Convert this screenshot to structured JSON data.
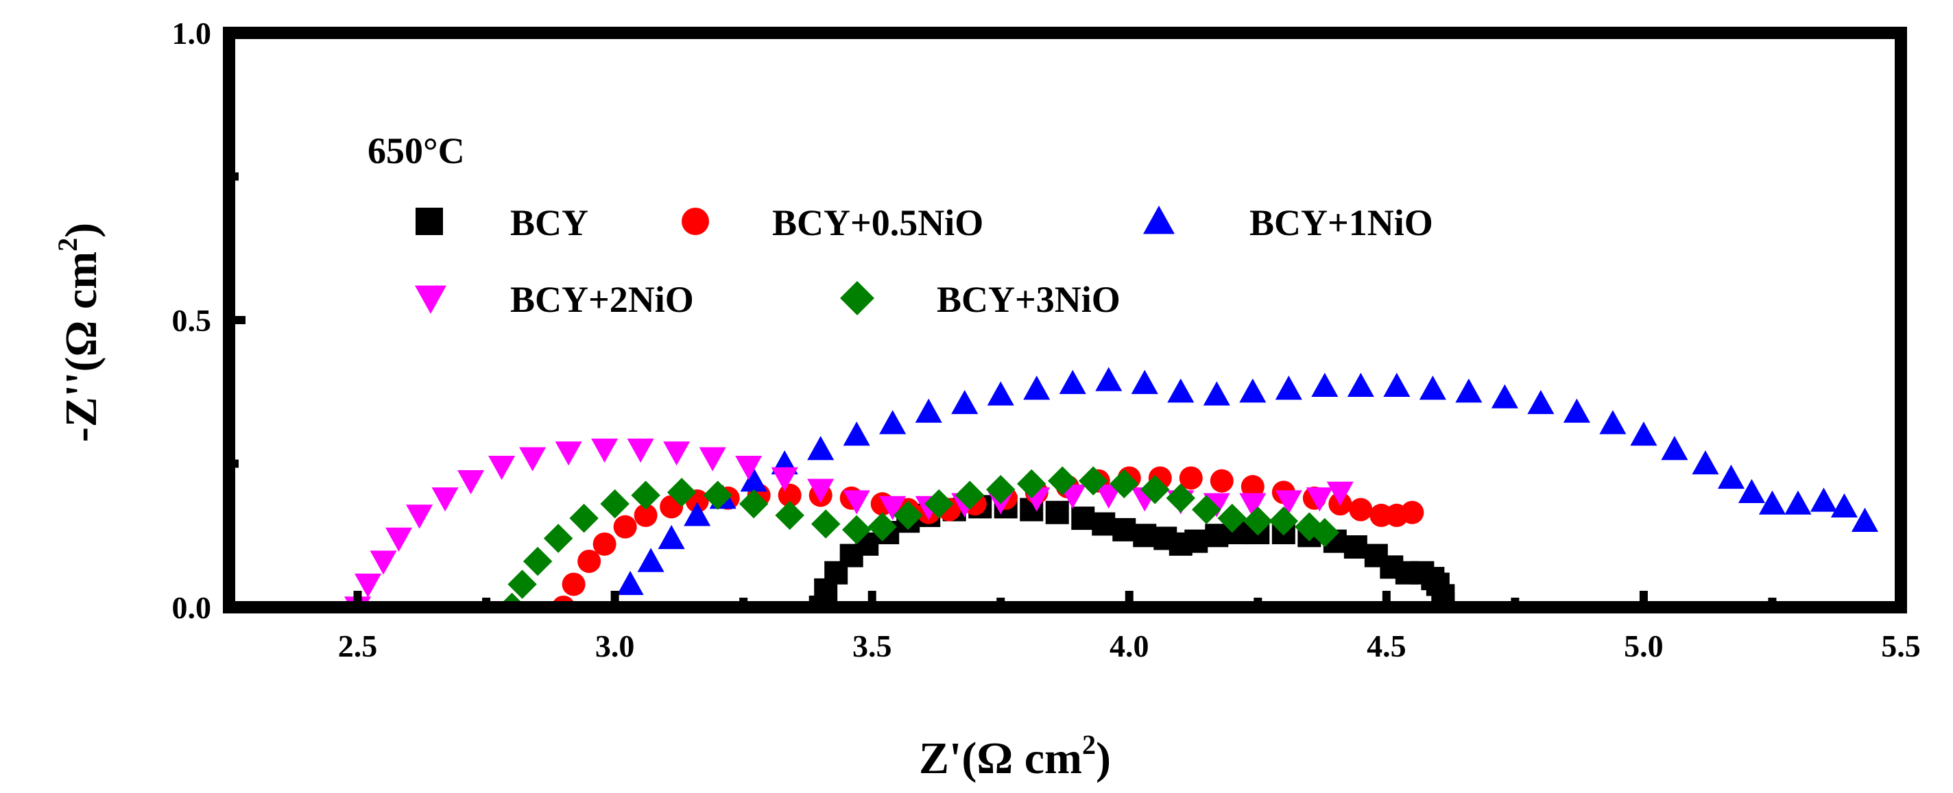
{
  "chart_data": {
    "type": "scatter",
    "title": "",
    "annotation": "650°C",
    "xlabel": "Z'(Ω cm",
    "xlabel_sup": "2",
    "xlabel_end": ")",
    "ylabel": "-Z''(Ω cm",
    "ylabel_sup": "2",
    "ylabel_end": ")",
    "xlim": [
      2.25,
      5.5
    ],
    "ylim": [
      0.0,
      1.0
    ],
    "xticks": [
      2.5,
      3.0,
      3.5,
      4.0,
      4.5,
      5.0,
      5.5
    ],
    "xtick_labels": [
      "2.5",
      "3.0",
      "3.5",
      "4.0",
      "4.5",
      "5.0",
      "5.5"
    ],
    "yticks": [
      0.0,
      0.5,
      1.0
    ],
    "ytick_labels": [
      "0.0",
      "0.5",
      "1.0"
    ],
    "legend_placement": "upper-left",
    "series": [
      {
        "name": "BCY",
        "color": "#000000",
        "marker": "square",
        "points": [
          [
            3.4,
            0.0
          ],
          [
            3.41,
            0.03
          ],
          [
            3.43,
            0.06
          ],
          [
            3.46,
            0.09
          ],
          [
            3.49,
            0.11
          ],
          [
            3.53,
            0.13
          ],
          [
            3.57,
            0.15
          ],
          [
            3.61,
            0.16
          ],
          [
            3.66,
            0.17
          ],
          [
            3.71,
            0.175
          ],
          [
            3.76,
            0.175
          ],
          [
            3.81,
            0.17
          ],
          [
            3.86,
            0.165
          ],
          [
            3.91,
            0.155
          ],
          [
            3.95,
            0.145
          ],
          [
            3.99,
            0.135
          ],
          [
            4.03,
            0.125
          ],
          [
            4.07,
            0.12
          ],
          [
            4.1,
            0.11
          ],
          [
            4.13,
            0.115
          ],
          [
            4.17,
            0.125
          ],
          [
            4.21,
            0.13
          ],
          [
            4.25,
            0.13
          ],
          [
            4.3,
            0.13
          ],
          [
            4.35,
            0.125
          ],
          [
            4.4,
            0.115
          ],
          [
            4.44,
            0.105
          ],
          [
            4.48,
            0.09
          ],
          [
            4.51,
            0.07
          ],
          [
            4.54,
            0.06
          ],
          [
            4.57,
            0.06
          ],
          [
            4.59,
            0.05
          ],
          [
            4.6,
            0.04
          ],
          [
            4.61,
            0.02
          ],
          [
            4.61,
            0.005
          ]
        ]
      },
      {
        "name": "BCY+0.5NiO",
        "color": "#ff0000",
        "marker": "circle",
        "points": [
          [
            2.9,
            0.0
          ],
          [
            2.92,
            0.04
          ],
          [
            2.95,
            0.08
          ],
          [
            2.98,
            0.11
          ],
          [
            3.02,
            0.14
          ],
          [
            3.06,
            0.16
          ],
          [
            3.11,
            0.175
          ],
          [
            3.16,
            0.185
          ],
          [
            3.22,
            0.19
          ],
          [
            3.28,
            0.195
          ],
          [
            3.34,
            0.195
          ],
          [
            3.4,
            0.195
          ],
          [
            3.46,
            0.19
          ],
          [
            3.52,
            0.18
          ],
          [
            3.57,
            0.17
          ],
          [
            3.61,
            0.165
          ],
          [
            3.65,
            0.17
          ],
          [
            3.7,
            0.18
          ],
          [
            3.76,
            0.19
          ],
          [
            3.82,
            0.2
          ],
          [
            3.88,
            0.21
          ],
          [
            3.94,
            0.22
          ],
          [
            4.0,
            0.225
          ],
          [
            4.06,
            0.225
          ],
          [
            4.12,
            0.225
          ],
          [
            4.18,
            0.22
          ],
          [
            4.24,
            0.21
          ],
          [
            4.3,
            0.2
          ],
          [
            4.36,
            0.19
          ],
          [
            4.41,
            0.18
          ],
          [
            4.45,
            0.17
          ],
          [
            4.49,
            0.16
          ],
          [
            4.52,
            0.16
          ],
          [
            4.55,
            0.165
          ]
        ]
      },
      {
        "name": "BCY+1NiO",
        "color": "#0000ff",
        "marker": "triangle-up",
        "points": [
          [
            3.0,
            0.0
          ],
          [
            3.03,
            0.04
          ],
          [
            3.07,
            0.08
          ],
          [
            3.11,
            0.12
          ],
          [
            3.16,
            0.16
          ],
          [
            3.21,
            0.19
          ],
          [
            3.27,
            0.22
          ],
          [
            3.33,
            0.25
          ],
          [
            3.4,
            0.275
          ],
          [
            3.47,
            0.3
          ],
          [
            3.54,
            0.32
          ],
          [
            3.61,
            0.34
          ],
          [
            3.68,
            0.355
          ],
          [
            3.75,
            0.37
          ],
          [
            3.82,
            0.38
          ],
          [
            3.89,
            0.39
          ],
          [
            3.96,
            0.395
          ],
          [
            4.03,
            0.39
          ],
          [
            4.1,
            0.375
          ],
          [
            4.17,
            0.37
          ],
          [
            4.24,
            0.375
          ],
          [
            4.31,
            0.38
          ],
          [
            4.38,
            0.385
          ],
          [
            4.45,
            0.385
          ],
          [
            4.52,
            0.385
          ],
          [
            4.59,
            0.38
          ],
          [
            4.66,
            0.375
          ],
          [
            4.73,
            0.365
          ],
          [
            4.8,
            0.355
          ],
          [
            4.87,
            0.34
          ],
          [
            4.94,
            0.32
          ],
          [
            5.0,
            0.3
          ],
          [
            5.06,
            0.275
          ],
          [
            5.12,
            0.25
          ],
          [
            5.17,
            0.225
          ],
          [
            5.21,
            0.2
          ],
          [
            5.25,
            0.18
          ],
          [
            5.3,
            0.18
          ],
          [
            5.35,
            0.185
          ],
          [
            5.39,
            0.175
          ],
          [
            5.43,
            0.15
          ]
        ]
      },
      {
        "name": "BCY+2NiO",
        "color": "#ff00ff",
        "marker": "triangle-down",
        "points": [
          [
            2.5,
            0.0
          ],
          [
            2.52,
            0.04
          ],
          [
            2.55,
            0.08
          ],
          [
            2.58,
            0.12
          ],
          [
            2.62,
            0.16
          ],
          [
            2.67,
            0.19
          ],
          [
            2.72,
            0.22
          ],
          [
            2.78,
            0.245
          ],
          [
            2.84,
            0.26
          ],
          [
            2.91,
            0.27
          ],
          [
            2.98,
            0.275
          ],
          [
            3.05,
            0.275
          ],
          [
            3.12,
            0.27
          ],
          [
            3.19,
            0.26
          ],
          [
            3.26,
            0.245
          ],
          [
            3.33,
            0.225
          ],
          [
            3.4,
            0.205
          ],
          [
            3.47,
            0.185
          ],
          [
            3.54,
            0.175
          ],
          [
            3.61,
            0.175
          ],
          [
            3.68,
            0.18
          ],
          [
            3.75,
            0.185
          ],
          [
            3.82,
            0.19
          ],
          [
            3.89,
            0.195
          ],
          [
            3.96,
            0.195
          ],
          [
            4.03,
            0.19
          ],
          [
            4.1,
            0.185
          ],
          [
            4.17,
            0.18
          ],
          [
            4.24,
            0.18
          ],
          [
            4.31,
            0.185
          ],
          [
            4.37,
            0.19
          ],
          [
            4.41,
            0.2
          ]
        ]
      },
      {
        "name": "BCY+3NiO",
        "color": "#008000",
        "marker": "diamond",
        "points": [
          [
            2.8,
            0.0
          ],
          [
            2.82,
            0.04
          ],
          [
            2.85,
            0.08
          ],
          [
            2.89,
            0.12
          ],
          [
            2.94,
            0.155
          ],
          [
            3.0,
            0.18
          ],
          [
            3.06,
            0.195
          ],
          [
            3.13,
            0.2
          ],
          [
            3.2,
            0.195
          ],
          [
            3.27,
            0.18
          ],
          [
            3.34,
            0.16
          ],
          [
            3.41,
            0.145
          ],
          [
            3.47,
            0.135
          ],
          [
            3.52,
            0.14
          ],
          [
            3.57,
            0.16
          ],
          [
            3.63,
            0.18
          ],
          [
            3.69,
            0.195
          ],
          [
            3.75,
            0.205
          ],
          [
            3.81,
            0.215
          ],
          [
            3.87,
            0.22
          ],
          [
            3.93,
            0.22
          ],
          [
            3.99,
            0.215
          ],
          [
            4.05,
            0.205
          ],
          [
            4.1,
            0.19
          ],
          [
            4.15,
            0.17
          ],
          [
            4.2,
            0.155
          ],
          [
            4.25,
            0.15
          ],
          [
            4.3,
            0.15
          ],
          [
            4.35,
            0.14
          ],
          [
            4.38,
            0.13
          ]
        ]
      }
    ]
  }
}
